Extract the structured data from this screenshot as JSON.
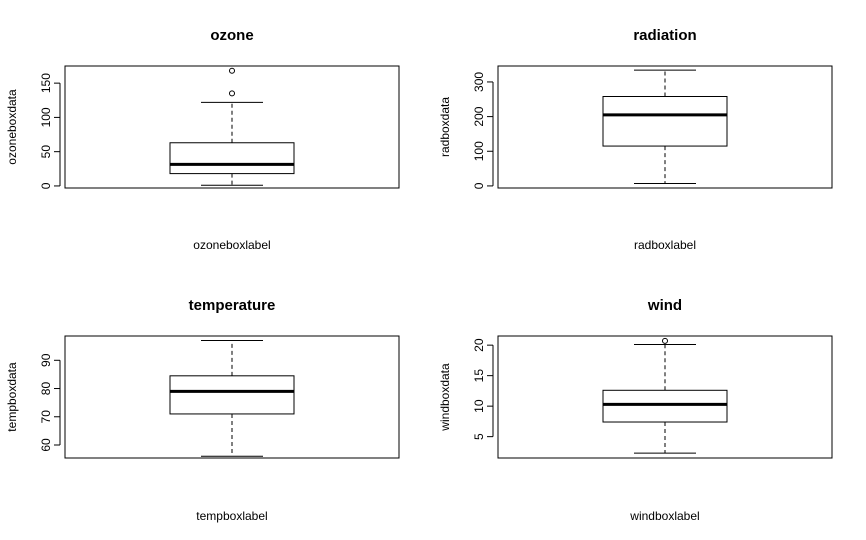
{
  "chart_data": [
    {
      "type": "box",
      "title": "ozone",
      "xlabel": "ozoneboxlabel",
      "ylabel": "ozoneboxdata",
      "ylim": [
        -3,
        175
      ],
      "yticks": [
        0,
        50,
        100,
        150
      ],
      "stats": {
        "min": 1,
        "q1": 18,
        "median": 31.5,
        "q3": 63,
        "max": 122
      },
      "outliers": [
        135,
        168
      ]
    },
    {
      "type": "box",
      "title": "radiation",
      "xlabel": "radboxlabel",
      "ylabel": "radboxdata",
      "ylim": [
        -6,
        346
      ],
      "yticks": [
        0,
        100,
        200,
        300
      ],
      "stats": {
        "min": 7,
        "q1": 115,
        "median": 205,
        "q3": 258,
        "max": 334
      },
      "outliers": []
    },
    {
      "type": "box",
      "title": "temperature",
      "xlabel": "tempboxlabel",
      "ylabel": "tempboxdata",
      "ylim": [
        55.4,
        98.6
      ],
      "yticks": [
        60,
        70,
        80,
        90
      ],
      "stats": {
        "min": 56,
        "q1": 71,
        "median": 79,
        "q3": 84.5,
        "max": 97
      },
      "outliers": []
    },
    {
      "type": "box",
      "title": "wind",
      "xlabel": "windboxlabel",
      "ylabel": "windboxdata",
      "ylim": [
        1.5,
        21.5
      ],
      "yticks": [
        5,
        10,
        15,
        20
      ],
      "stats": {
        "min": 2.3,
        "q1": 7.4,
        "median": 10.3,
        "q3": 12.6,
        "max": 20.1
      },
      "outliers": [
        20.7
      ]
    }
  ]
}
